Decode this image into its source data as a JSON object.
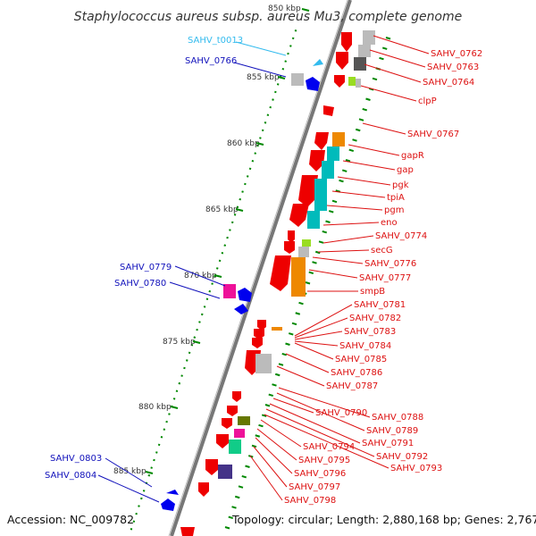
{
  "title": "Staphylococcus aureus subsp. aureus Mu3, complete genome",
  "footer": {
    "accession": "Accession: NC_009782",
    "info": "Topology: circular; Length: 2,880,168 bp; Genes: 2,767"
  },
  "colors": {
    "forward_label": "#dd1111",
    "reverse_label": "#1111bb",
    "rna_label": "#33bbee",
    "gene_red": "#ee0000",
    "gene_blue": "#0000ee",
    "gene_gray": "#bbbbbb",
    "gene_dark": "#555555",
    "gene_cyan": "#00bbbb",
    "gene_orange": "#ee8800",
    "gene_lime": "#99dd22",
    "gene_magenta": "#ee1199",
    "gene_green": "#11cc88",
    "gene_olive": "#667700",
    "gene_navy": "#443388",
    "tick_green": "#008800",
    "backbone": "#777777"
  },
  "kbp_markers": [
    "850 kbp",
    "855 kbp",
    "860 kbp",
    "865 kbp",
    "870 kbp",
    "875 kbp",
    "880 kbp",
    "885 kbp"
  ],
  "right_labels": [
    "SAHV_0762",
    "SAHV_0763",
    "SAHV_0764",
    "clpP",
    "SAHV_0767",
    "gapR",
    "gap",
    "pgk",
    "tpiA",
    "pgm",
    "eno",
    "SAHV_0774",
    "secG",
    "SAHV_0776",
    "SAHV_0777",
    "smpB",
    "SAHV_0781",
    "SAHV_0782",
    "SAHV_0783",
    "SAHV_0784",
    "SAHV_0785",
    "SAHV_0786",
    "SAHV_0787",
    "SAHV_0788",
    "SAHV_0789",
    "SAHV_0790",
    "SAHV_0791",
    "SAHV_0792",
    "SAHV_0793",
    "SAHV_0794",
    "SAHV_0795",
    "SAHV_0796",
    "SAHV_0797",
    "SAHV_0798"
  ],
  "left_labels": [
    "SAHV_t0013",
    "SAHV_0766",
    "SAHV_0779",
    "SAHV_0780",
    "SAHV_0803",
    "SAHV_0804"
  ]
}
